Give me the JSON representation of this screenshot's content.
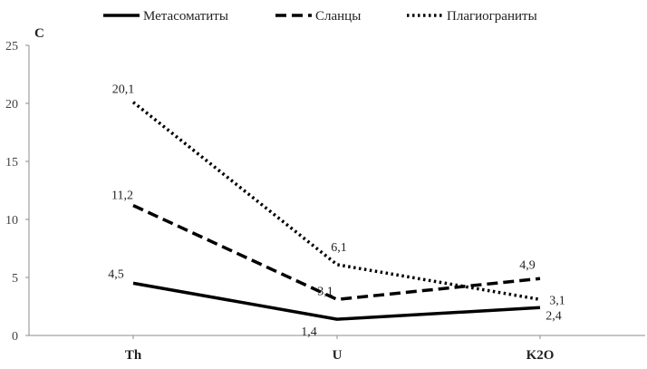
{
  "chart_data": {
    "type": "line",
    "categories": [
      "Th",
      "U",
      "K2O"
    ],
    "ylabel": "C",
    "xlabel": "",
    "ylim": [
      0,
      25
    ],
    "yticks": [
      0,
      5,
      10,
      15,
      20,
      25
    ],
    "grid": false,
    "legend_position": "top",
    "series": [
      {
        "name": "Метасоматиты",
        "values": [
          4.5,
          1.4,
          2.4
        ],
        "labels": [
          "4,5",
          "1,4",
          "2,4"
        ],
        "style": "solid",
        "color": "#000000"
      },
      {
        "name": "Сланцы",
        "values": [
          11.2,
          3.1,
          4.9
        ],
        "labels": [
          "11,2",
          "3,1",
          "4,9"
        ],
        "style": "dashed",
        "color": "#000000"
      },
      {
        "name": "Плагиограниты",
        "values": [
          20.1,
          6.1,
          3.1
        ],
        "labels": [
          "20,1",
          "6,1",
          "3,1"
        ],
        "style": "dotted",
        "color": "#000000"
      }
    ]
  }
}
